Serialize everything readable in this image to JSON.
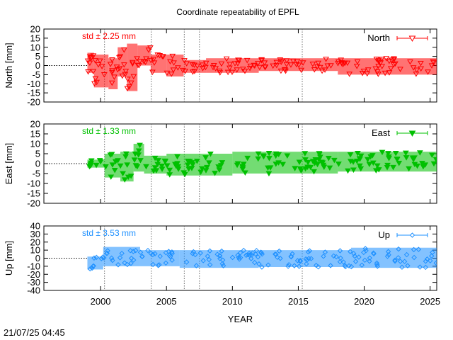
{
  "title": "Coordinate repeatability of EPFL",
  "timestamp": "21/07/25 04:45",
  "chart_data": [
    {
      "type": "scatter",
      "ylabel": "North [mm]",
      "ylim": [
        -20,
        20
      ],
      "yticks": [
        20,
        15,
        10,
        5,
        0,
        -5,
        -10,
        -15,
        -20
      ],
      "xlim": [
        1995.7,
        2025.5
      ],
      "color": "#ff0000",
      "marker": "triangle-down",
      "series": [
        {
          "name": "North"
        }
      ],
      "std_label": "std ± 2.25 mm",
      "vlines": [
        2000.3,
        2003.85,
        2006.35,
        2007.5,
        2015.3
      ],
      "zero_line_end": 1999.0,
      "segments": [
        {
          "x": [
            1999.0,
            1999.5
          ],
          "ymin": -4,
          "ymax": 7
        },
        {
          "x": [
            1999.5,
            2000.6
          ],
          "ymin": -12,
          "ymax": 6
        },
        {
          "x": [
            2000.6,
            2001.3
          ],
          "ymin": -13,
          "ymax": 4
        },
        {
          "x": [
            2001.3,
            2002.0
          ],
          "ymin": -6,
          "ymax": 10
        },
        {
          "x": [
            2002.0,
            2002.8
          ],
          "ymin": -14,
          "ymax": 12
        },
        {
          "x": [
            2002.8,
            2003.8
          ],
          "ymin": 0,
          "ymax": 11
        },
        {
          "x": [
            2003.8,
            2005.0
          ],
          "ymin": -4,
          "ymax": 6
        },
        {
          "x": [
            2005.0,
            2006.3
          ],
          "ymin": -6,
          "ymax": 6
        },
        {
          "x": [
            2006.3,
            2008.0
          ],
          "ymin": -4,
          "ymax": 3
        },
        {
          "x": [
            2008.0,
            2012.0
          ],
          "ymin": -4,
          "ymax": 4
        },
        {
          "x": [
            2012.0,
            2018.0
          ],
          "ymin": -3,
          "ymax": 4
        },
        {
          "x": [
            2018.0,
            2025.5
          ],
          "ymin": -5,
          "ymax": 4
        }
      ]
    },
    {
      "type": "scatter",
      "ylabel": "East [mm]",
      "ylim": [
        -20,
        20
      ],
      "yticks": [
        20,
        15,
        10,
        5,
        0,
        -5,
        -10,
        -15,
        -20
      ],
      "xlim": [
        1995.7,
        2025.5
      ],
      "color": "#00c000",
      "marker": "triangle-down-filled",
      "series": [
        {
          "name": "East"
        }
      ],
      "std_label": "std ± 1.33 mm",
      "vlines": [
        2000.3,
        2003.85,
        2006.35,
        2007.5,
        2015.3
      ],
      "zero_line_end": 1999.0,
      "segments": [
        {
          "x": [
            1999.0,
            2000.3
          ],
          "ymin": -2,
          "ymax": 2
        },
        {
          "x": [
            2000.3,
            2001.5
          ],
          "ymin": -7,
          "ymax": 5
        },
        {
          "x": [
            2001.5,
            2002.5
          ],
          "ymin": -9,
          "ymax": 6
        },
        {
          "x": [
            2002.5,
            2003.3
          ],
          "ymin": -4,
          "ymax": 10
        },
        {
          "x": [
            2003.3,
            2005.0
          ],
          "ymin": -5,
          "ymax": 4
        },
        {
          "x": [
            2005.0,
            2010.0
          ],
          "ymin": -6,
          "ymax": 5
        },
        {
          "x": [
            2010.0,
            2018.0
          ],
          "ymin": -5,
          "ymax": 6
        },
        {
          "x": [
            2018.0,
            2025.5
          ],
          "ymin": -4,
          "ymax": 6
        }
      ]
    },
    {
      "type": "scatter",
      "ylabel": "Up [mm]",
      "ylim": [
        -40,
        40
      ],
      "yticks": [
        40,
        30,
        20,
        10,
        0,
        -10,
        -20,
        -30,
        -40
      ],
      "yticklabels": [
        "40",
        "30",
        "20",
        "10",
        "0",
        "-10",
        "-20",
        "-30",
        "-40"
      ],
      "xlim": [
        1995.7,
        2025.5
      ],
      "xticks": [
        2000,
        2005,
        2010,
        2015,
        2020,
        2025
      ],
      "xlabel": "YEAR",
      "color": "#1e90ff",
      "marker": "diamond-open",
      "series": [
        {
          "name": "Up"
        }
      ],
      "std_label": "std ± 3.53 mm",
      "vlines": [
        2000.3,
        2003.85,
        2006.35,
        2007.5,
        2015.3
      ],
      "zero_line_end": 1999.0,
      "segments": [
        {
          "x": [
            1999.0,
            2000.2
          ],
          "ymin": -14,
          "ymax": 2
        },
        {
          "x": [
            2000.2,
            2003.0
          ],
          "ymin": -10,
          "ymax": 14
        },
        {
          "x": [
            2003.0,
            2006.0
          ],
          "ymin": -10,
          "ymax": 10
        },
        {
          "x": [
            2006.0,
            2012.0
          ],
          "ymin": -12,
          "ymax": 10
        },
        {
          "x": [
            2012.0,
            2019.0
          ],
          "ymin": -11,
          "ymax": 10
        },
        {
          "x": [
            2019.0,
            2025.5
          ],
          "ymin": -12,
          "ymax": 13
        }
      ]
    }
  ]
}
